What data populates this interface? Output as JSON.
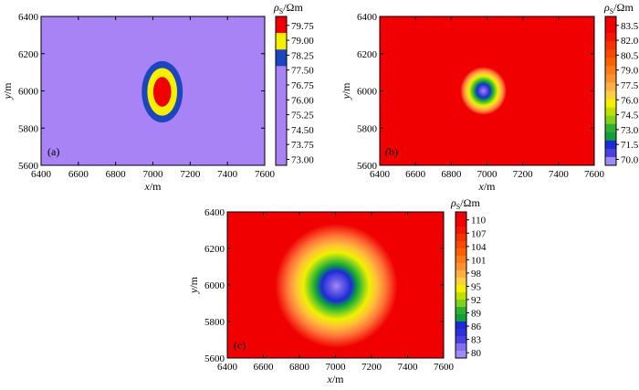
{
  "figure": {
    "colorbar_title_symbol": "ρ",
    "colorbar_title_sub": "S",
    "colorbar_title_unit": "/Ωm",
    "xlabel_var": "x",
    "xlabel_unit": "/m",
    "ylabel_var": "y",
    "ylabel_unit": "/m"
  },
  "chart_data": [
    {
      "type": "heatmap",
      "tag": "(a)",
      "xlim": [
        6400,
        7600
      ],
      "ylim": [
        5600,
        6400
      ],
      "x_ticks": [
        "6400",
        "6600",
        "6800",
        "7000",
        "7200",
        "7400",
        "7600"
      ],
      "y_ticks": [
        "5600",
        "5800",
        "6000",
        "6200",
        "6400"
      ],
      "colorbar_ticks": [
        "79.75",
        "79.00",
        "78.25",
        "77.50",
        "76.75",
        "76.00",
        "75.25",
        "74.50",
        "73.75",
        "73.00"
      ],
      "background": "#a883f5",
      "anomaly": {
        "center_x": 7050,
        "center_y": 5995,
        "type": "high"
      },
      "contours": [
        {
          "rx": 110,
          "ry": 165,
          "color": "#1c46c0"
        },
        {
          "rx": 80,
          "ry": 128,
          "color": "#f6f000"
        },
        {
          "rx": 48,
          "ry": 80,
          "color": "#f00000"
        }
      ],
      "colorbar_colors": [
        "#f00000",
        "#f6f000",
        "#1c46c0",
        "#a883f5",
        "#a883f5",
        "#a883f5",
        "#a883f5",
        "#a883f5",
        "#a883f5"
      ]
    },
    {
      "type": "heatmap",
      "tag": "(b)",
      "xlim": [
        6400,
        7600
      ],
      "ylim": [
        5600,
        6400
      ],
      "x_ticks": [
        "6400",
        "6600",
        "6800",
        "7000",
        "7200",
        "7400",
        "7600"
      ],
      "y_ticks": [
        "5600",
        "5800",
        "6000",
        "6200",
        "6400"
      ],
      "colorbar_ticks": [
        "83.5",
        "82.0",
        "80.5",
        "79.0",
        "77.5",
        "76.0",
        "74.5",
        "73.0",
        "71.5",
        "70.0"
      ],
      "background": "#f00000",
      "anomaly": {
        "center_x": 6980,
        "center_y": 6000,
        "type": "low"
      },
      "contour_radius": 130,
      "stops": [
        {
          "r": 0.0,
          "color": "#a08cf2"
        },
        {
          "r": 0.12,
          "color": "#6a5ce6"
        },
        {
          "r": 0.28,
          "color": "#1c2bd6"
        },
        {
          "r": 0.4,
          "color": "#0fa43a"
        },
        {
          "r": 0.52,
          "color": "#7ad01f"
        },
        {
          "r": 0.62,
          "color": "#f0f000"
        },
        {
          "r": 0.74,
          "color": "#ffc03a"
        },
        {
          "r": 0.86,
          "color": "#ff7a3a"
        },
        {
          "r": 1.0,
          "color": "#f00000"
        }
      ],
      "colorbar_colors": [
        "#f00000",
        "#f30000",
        "#f51500",
        "#f73000",
        "#f94800",
        "#fb6000",
        "#fd7a1a",
        "#ff9030",
        "#ffb040",
        "#ffd040",
        "#f6f000",
        "#c0e000",
        "#80d020",
        "#30b030",
        "#0fa03a",
        "#1c2bd6",
        "#4a40e0",
        "#a08cf2"
      ]
    },
    {
      "type": "heatmap",
      "tag": "(c)",
      "xlim": [
        6400,
        7600
      ],
      "ylim": [
        5600,
        6400
      ],
      "x_ticks": [
        "6400",
        "6600",
        "6800",
        "7000",
        "7200",
        "7400",
        "7600"
      ],
      "y_ticks": [
        "5600",
        "5800",
        "6000",
        "6200",
        "6400"
      ],
      "colorbar_ticks": [
        "110",
        "107",
        "104",
        "101",
        "98",
        "95",
        "92",
        "89",
        "86",
        "83",
        "80"
      ],
      "background": "#f00000",
      "anomaly": {
        "center_x": 7005,
        "center_y": 5995,
        "type": "low"
      },
      "contour_radius": 340,
      "stops": [
        {
          "r": 0.0,
          "color": "#a08cf2"
        },
        {
          "r": 0.1,
          "color": "#6a5ce6"
        },
        {
          "r": 0.24,
          "color": "#1c2bd6"
        },
        {
          "r": 0.34,
          "color": "#0fa43a"
        },
        {
          "r": 0.44,
          "color": "#7ad01f"
        },
        {
          "r": 0.54,
          "color": "#f0f000"
        },
        {
          "r": 0.66,
          "color": "#ffc03a"
        },
        {
          "r": 0.8,
          "color": "#ff7a3a"
        },
        {
          "r": 1.0,
          "color": "#f00000"
        }
      ],
      "colorbar_colors": [
        "#f00000",
        "#f30000",
        "#f51500",
        "#f73000",
        "#f94800",
        "#fb6000",
        "#fd7a1a",
        "#ff9030",
        "#ffb040",
        "#ffd040",
        "#f6f000",
        "#c0e000",
        "#80d020",
        "#30b030",
        "#0fa03a",
        "#1c2bd6",
        "#3030d8",
        "#4a40e0",
        "#8070ec",
        "#a08cf2"
      ]
    }
  ]
}
